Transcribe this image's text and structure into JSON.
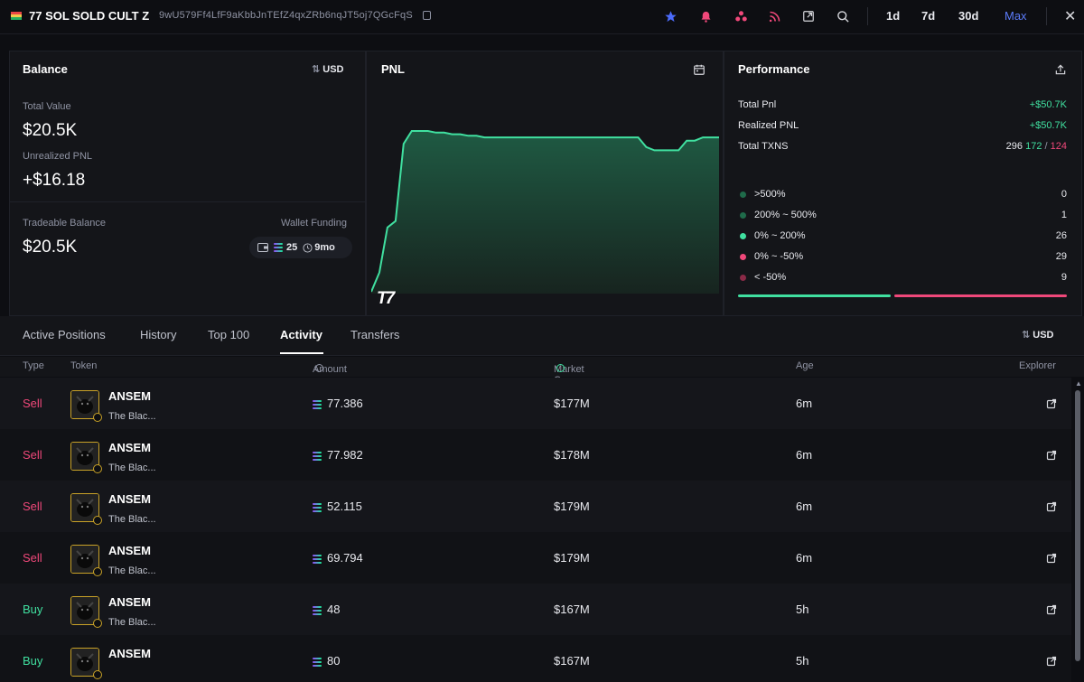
{
  "header": {
    "wallet_name": "77 SOL SOLD CULT Z",
    "wallet_address": "9wU579Ff4LfF9aKbbJnTEfZ4qxZRb6nqJT5oj7QGcFqS",
    "ranges": [
      "1d",
      "7d",
      "30d",
      "Max"
    ],
    "active_range": "Max"
  },
  "balance": {
    "title": "Balance",
    "currency_toggle": "USD",
    "total_value_label": "Total Value",
    "total_value": "$20.5K",
    "unrealized_pnl_label": "Unrealized PNL",
    "unrealized_pnl": "+$16.18",
    "tradeable_label": "Tradeable Balance",
    "tradeable_value": "$20.5K",
    "wallet_funding_label": "Wallet Funding",
    "funding_amount": "25",
    "funding_age": "9mo"
  },
  "pnl": {
    "title": "PNL",
    "watermark": "T7"
  },
  "chart_data": {
    "type": "area",
    "title": "PNL",
    "x": [
      0,
      1,
      2,
      3,
      4,
      5,
      6,
      7,
      8,
      9,
      10,
      11,
      12,
      13,
      14,
      15,
      16,
      17,
      18,
      19,
      20,
      21,
      22,
      23,
      24,
      25,
      26,
      27,
      28,
      29,
      30,
      31,
      32,
      33,
      34,
      35,
      36,
      37,
      38,
      39,
      40,
      41,
      42,
      43
    ],
    "values": [
      0,
      12,
      40,
      44,
      92,
      100,
      100,
      100,
      99,
      99,
      98,
      98,
      97,
      97,
      96,
      96,
      96,
      96,
      96,
      96,
      96,
      96,
      96,
      96,
      96,
      96,
      96,
      96,
      96,
      96,
      96,
      96,
      96,
      96,
      90,
      88,
      88,
      88,
      88,
      94,
      94,
      96,
      96,
      96
    ],
    "grid": false,
    "color": "#40e0a0"
  },
  "performance": {
    "title": "Performance",
    "total_pnl_label": "Total Pnl",
    "total_pnl": "+$50.7K",
    "realized_pnl_label": "Realized PNL",
    "realized_pnl": "+$50.7K",
    "total_txns_label": "Total TXNS",
    "total_txns": "296",
    "buys": "172",
    "sells": "124",
    "distribution": [
      {
        "label": ">500%",
        "count": "0",
        "color": "#1f6b4a"
      },
      {
        "label": "200% ~ 500%",
        "count": "1",
        "color": "#1f6b4a"
      },
      {
        "label": "0% ~ 200%",
        "count": "26",
        "color": "#40e0a0"
      },
      {
        "label": "0% ~ -50%",
        "count": "29",
        "color": "#f0487a"
      },
      {
        "label": "< -50%",
        "count": "9",
        "color": "#8a2a47"
      }
    ],
    "bar_green_fraction": 0.47
  },
  "tabs": {
    "items": [
      "Active Positions",
      "History",
      "Top 100",
      "Activity",
      "Transfers"
    ],
    "active": "Activity",
    "currency_toggle": "USD"
  },
  "table": {
    "columns": {
      "type": "Type",
      "token": "Token",
      "amount": "Amount",
      "market_cap": "Market Cap",
      "age": "Age",
      "explorer": "Explorer"
    },
    "rows": [
      {
        "type": "Sell",
        "symbol": "ANSEM",
        "name": "The Blac...",
        "amount": "77.386",
        "market_cap": "$177M",
        "age": "6m"
      },
      {
        "type": "Sell",
        "symbol": "ANSEM",
        "name": "The Blac...",
        "amount": "77.982",
        "market_cap": "$178M",
        "age": "6m"
      },
      {
        "type": "Sell",
        "symbol": "ANSEM",
        "name": "The Blac...",
        "amount": "52.115",
        "market_cap": "$179M",
        "age": "6m"
      },
      {
        "type": "Sell",
        "symbol": "ANSEM",
        "name": "The Blac...",
        "amount": "69.794",
        "market_cap": "$179M",
        "age": "6m"
      },
      {
        "type": "Buy",
        "symbol": "ANSEM",
        "name": "The Blac...",
        "amount": "48",
        "market_cap": "$167M",
        "age": "5h"
      },
      {
        "type": "Buy",
        "symbol": "ANSEM",
        "name": "",
        "amount": "80",
        "market_cap": "$167M",
        "age": "5h"
      }
    ]
  },
  "colors": {
    "buy": "#40e0a0",
    "sell": "#f0487a",
    "accent": "#5c7cfa"
  }
}
